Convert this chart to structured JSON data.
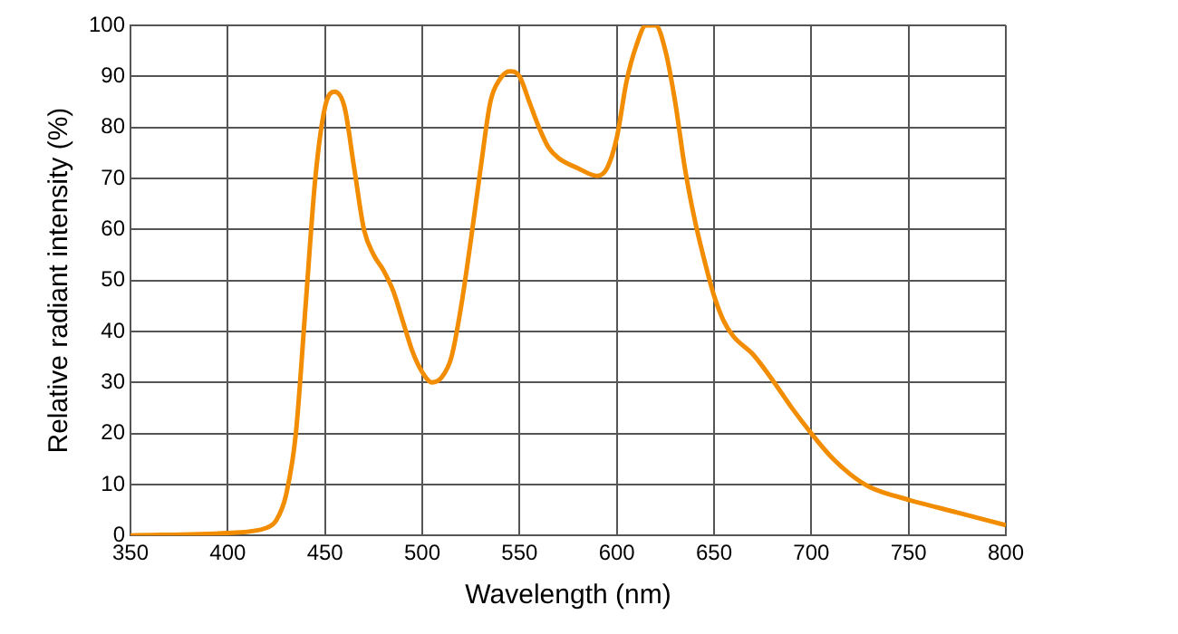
{
  "chart_data": {
    "type": "line",
    "xlabel": "Wavelength (nm)",
    "ylabel": "Relative radiant intensity (%)",
    "x": [
      350,
      400,
      420,
      425,
      430,
      435,
      440,
      445,
      450,
      455,
      460,
      465,
      470,
      475,
      480,
      485,
      490,
      495,
      500,
      505,
      510,
      515,
      520,
      525,
      530,
      535,
      540,
      545,
      550,
      555,
      560,
      565,
      570,
      580,
      590,
      595,
      600,
      605,
      610,
      615,
      620,
      625,
      630,
      635,
      640,
      645,
      650,
      655,
      660,
      670,
      680,
      690,
      700,
      710,
      720,
      730,
      750,
      775,
      800
    ],
    "series": [
      {
        "color": "#f28c00",
        "values": [
          0,
          0.5,
          1.5,
          3,
          8,
          20,
          45,
          70,
          84,
          87,
          84,
          72,
          60,
          55,
          52,
          48,
          42,
          36,
          32,
          30,
          31,
          35,
          45,
          58,
          72,
          85,
          89.5,
          91,
          90,
          85,
          80,
          76,
          74,
          72,
          70.5,
          72,
          78,
          89,
          96,
          100,
          100,
          95,
          85,
          72,
          62,
          54,
          47,
          42,
          39,
          35.5,
          30.5,
          25,
          20,
          15.5,
          12,
          9.5,
          7,
          4.5,
          2
        ]
      }
    ],
    "xlim": [
      350,
      800
    ],
    "xticks": [
      350,
      400,
      450,
      500,
      550,
      600,
      650,
      700,
      750,
      800
    ],
    "ylim": [
      0,
      100
    ],
    "yticks": [
      0,
      10,
      20,
      30,
      40,
      50,
      60,
      70,
      80,
      90,
      100
    ],
    "grid": true,
    "legend": false,
    "marker": "none",
    "line_style": "solid"
  }
}
